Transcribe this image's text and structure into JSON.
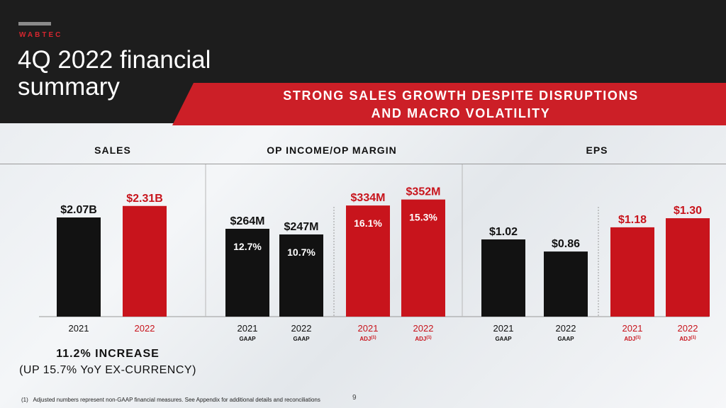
{
  "header": {
    "brand": "WABTEC",
    "title": "4Q 2022 financial summary",
    "banner_line1": "STRONG SALES GROWTH DESPITE DISRUPTIONS",
    "banner_line2": "AND MACRO VOLATILITY"
  },
  "colors": {
    "black_bar": "#121212",
    "red_bar": "#c8141c",
    "red_text": "#c8141c",
    "text": "#111111"
  },
  "chart_data": [
    {
      "type": "bar",
      "title": "SALES",
      "unit": "$B",
      "ylim": [
        0,
        2.6
      ],
      "bars": [
        {
          "year": "2021",
          "sub": "",
          "value": 2.07,
          "label": "$2.07B",
          "color": "black"
        },
        {
          "year": "2022",
          "sub": "",
          "value": 2.31,
          "label": "$2.31B",
          "color": "red"
        }
      ]
    },
    {
      "type": "bar",
      "title": "OP INCOME/OP MARGIN",
      "unit": "$M",
      "ylim": [
        0,
        400
      ],
      "bars": [
        {
          "year": "2021",
          "sub": "GAAP",
          "sup": "",
          "value": 264,
          "label": "$264M",
          "margin": "12.7%",
          "color": "black"
        },
        {
          "year": "2022",
          "sub": "GAAP",
          "sup": "",
          "value": 247,
          "label": "$247M",
          "margin": "10.7%",
          "color": "black"
        },
        {
          "year": "2021",
          "sub": "ADJ",
          "sup": "(1)",
          "value": 334,
          "label": "$334M",
          "margin": "16.1%",
          "color": "red"
        },
        {
          "year": "2022",
          "sub": "ADJ",
          "sup": "(1)",
          "value": 352,
          "label": "$352M",
          "margin": "15.3%",
          "color": "red"
        }
      ]
    },
    {
      "type": "bar",
      "title": "EPS",
      "unit": "$",
      "ylim": [
        0,
        1.5
      ],
      "bars": [
        {
          "year": "2021",
          "sub": "GAAP",
          "sup": "",
          "value": 1.02,
          "label": "$1.02",
          "color": "black"
        },
        {
          "year": "2022",
          "sub": "GAAP",
          "sup": "",
          "value": 0.86,
          "label": "$0.86",
          "color": "black"
        },
        {
          "year": "2021",
          "sub": "ADJ",
          "sup": "(1)",
          "value": 1.18,
          "label": "$1.18",
          "color": "red"
        },
        {
          "year": "2022",
          "sub": "ADJ",
          "sup": "(1)",
          "value": 1.3,
          "label": "$1.30",
          "color": "red"
        }
      ]
    }
  ],
  "summary": {
    "increase": "11.2% INCREASE",
    "ex_currency": "(UP 15.7% YoY EX-CURRENCY)"
  },
  "footer": {
    "footnote_marker": "(1)",
    "footnote": "Adjusted numbers represent non-GAAP financial measures.  See Appendix for additional details and reconciliations",
    "page_number": "9"
  }
}
